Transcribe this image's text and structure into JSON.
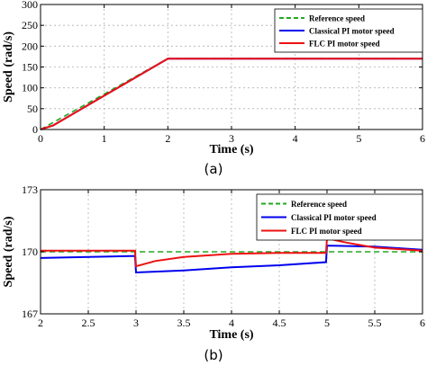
{
  "chart_data": [
    {
      "type": "line",
      "subplot_label": "(a)",
      "xlabel": "Time (s)",
      "ylabel": "Speed (rad/s)",
      "xlim": [
        0,
        6
      ],
      "ylim": [
        0,
        300
      ],
      "xticks": [
        "0",
        "1",
        "2",
        "3",
        "4",
        "5",
        "6"
      ],
      "yticks": [
        "0",
        "50",
        "100",
        "150",
        "200",
        "250",
        "300"
      ],
      "grid": true,
      "legend_position": "top-right",
      "series": [
        {
          "name": "Reference speed",
          "color": "#22aa22",
          "style": "dashed",
          "x": [
            0,
            2,
            6
          ],
          "y": [
            0,
            170,
            170
          ]
        },
        {
          "name": "Classical PI motor speed",
          "color": "#0000ee",
          "style": "solid",
          "x": [
            0,
            0.1,
            0.2,
            2,
            6
          ],
          "y": [
            0,
            5,
            10,
            170,
            170
          ]
        },
        {
          "name": "FLC PI motor speed",
          "color": "#ee1111",
          "style": "solid",
          "x": [
            0,
            0.1,
            0.2,
            2,
            6
          ],
          "y": [
            0,
            5,
            10,
            170,
            170
          ]
        }
      ]
    },
    {
      "type": "line",
      "subplot_label": "(b)",
      "xlabel": "Time (s)",
      "ylabel": "Speed (rad/s)",
      "xlim": [
        2,
        6
      ],
      "ylim": [
        167,
        173
      ],
      "xticks": [
        "2",
        "2.5",
        "3",
        "3.5",
        "4",
        "4.5",
        "5",
        "5.5",
        "6"
      ],
      "yticks": [
        "167",
        "170",
        "173"
      ],
      "grid": true,
      "legend_position": "top-right",
      "series": [
        {
          "name": "Reference speed",
          "color": "#22aa22",
          "style": "dashed",
          "x": [
            2,
            6
          ],
          "y": [
            170,
            170
          ]
        },
        {
          "name": "Classical PI motor speed",
          "color": "#0000ee",
          "style": "solid",
          "x": [
            2,
            2.5,
            2.99,
            3.0,
            3.5,
            4.0,
            4.5,
            4.99,
            5.0,
            5.5,
            6.0
          ],
          "y": [
            169.7,
            169.75,
            169.8,
            169.0,
            169.1,
            169.25,
            169.35,
            169.5,
            170.3,
            170.25,
            170.1
          ]
        },
        {
          "name": "FLC PI motor speed",
          "color": "#ee1111",
          "style": "solid",
          "x": [
            2,
            2.5,
            2.99,
            3.0,
            3.2,
            3.5,
            4.0,
            4.5,
            4.99,
            5.0,
            5.2,
            5.5,
            6.0
          ],
          "y": [
            170.05,
            170.05,
            170.05,
            169.3,
            169.55,
            169.75,
            169.9,
            169.95,
            169.95,
            170.65,
            170.45,
            170.2,
            170.05
          ]
        }
      ]
    }
  ]
}
